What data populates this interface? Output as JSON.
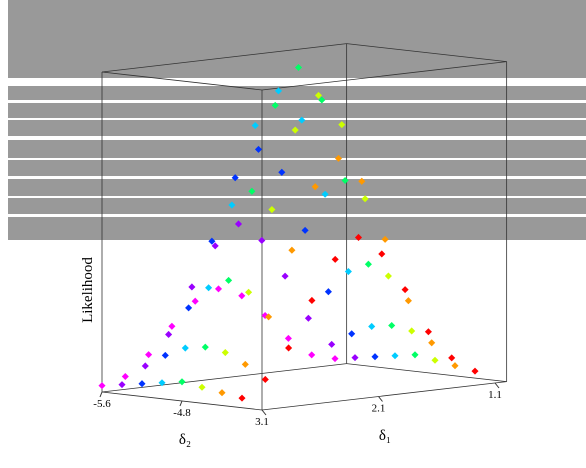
{
  "chart_data": {
    "type": "scatter3d",
    "xlabel": "δ₁",
    "ylabel": "δ₂",
    "zlabel": "Likelihood",
    "xlim": [
      1.0,
      3.1
    ],
    "ylim": [
      -5.6,
      -4.0
    ],
    "zlim": [
      0,
      1
    ],
    "xticks": [
      3.1,
      2.1,
      1.1
    ],
    "yticks": [
      -5.6,
      -4.8
    ],
    "x": [
      1.1,
      1.3,
      1.5,
      1.7,
      1.9,
      2.1,
      2.3,
      2.5,
      2.7,
      2.9,
      3.1
    ],
    "series": [
      {
        "y": -5.6,
        "color": "#ff00ff",
        "values": [
          0.02,
          0.04,
          0.1,
          0.18,
          0.25,
          0.28,
          0.25,
          0.18,
          0.1,
          0.04,
          0.02
        ]
      },
      {
        "y": -5.4,
        "color": "#9900ff",
        "values": [
          0.03,
          0.08,
          0.17,
          0.31,
          0.43,
          0.49,
          0.43,
          0.31,
          0.17,
          0.08,
          0.03
        ]
      },
      {
        "y": -5.2,
        "color": "#0033ff",
        "values": [
          0.04,
          0.12,
          0.26,
          0.46,
          0.65,
          0.73,
          0.65,
          0.46,
          0.26,
          0.12,
          0.04
        ]
      },
      {
        "y": -5.0,
        "color": "#00ccff",
        "values": [
          0.05,
          0.15,
          0.33,
          0.58,
          0.82,
          0.92,
          0.82,
          0.58,
          0.33,
          0.15,
          0.05
        ]
      },
      {
        "y": -4.8,
        "color": "#00ff66",
        "values": [
          0.06,
          0.16,
          0.36,
          0.63,
          0.89,
          1.0,
          0.89,
          0.63,
          0.36,
          0.16,
          0.06
        ]
      },
      {
        "y": -4.6,
        "color": "#ccff00",
        "values": [
          0.05,
          0.15,
          0.33,
          0.58,
          0.82,
          0.92,
          0.82,
          0.58,
          0.33,
          0.15,
          0.05
        ]
      },
      {
        "y": -4.4,
        "color": "#ff9900",
        "values": [
          0.04,
          0.12,
          0.26,
          0.46,
          0.65,
          0.73,
          0.65,
          0.46,
          0.26,
          0.12,
          0.04
        ]
      },
      {
        "y": -4.2,
        "color": "#ff0000",
        "values": [
          0.03,
          0.08,
          0.17,
          0.31,
          0.43,
          0.49,
          0.43,
          0.31,
          0.17,
          0.08,
          0.03
        ]
      }
    ]
  }
}
